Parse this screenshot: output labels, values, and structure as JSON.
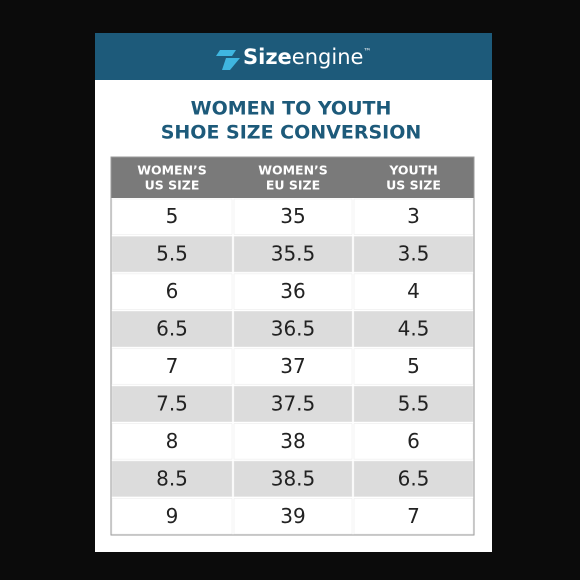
{
  "header": {
    "logo": {
      "bold": "Size",
      "light": "engine",
      "mark": "™"
    }
  },
  "title": [
    "WOMEN TO YOUTH",
    "SHOE SIZE CONVERSION"
  ],
  "table": {
    "columns": [
      [
        "WOMEN’S",
        "US SIZE"
      ],
      [
        "WOMEN’S",
        "EU SIZE"
      ],
      [
        "YOUTH",
        "US SIZE"
      ]
    ],
    "rows": [
      [
        "5",
        "35",
        "3"
      ],
      [
        "5.5",
        "35.5",
        "3.5"
      ],
      [
        "6",
        "36",
        "4"
      ],
      [
        "6.5",
        "36.5",
        "4.5"
      ],
      [
        "7",
        "37",
        "5"
      ],
      [
        "7.5",
        "37.5",
        "5.5"
      ],
      [
        "8",
        "38",
        "6"
      ],
      [
        "8.5",
        "38.5",
        "6.5"
      ],
      [
        "9",
        "39",
        "7"
      ]
    ]
  }
}
